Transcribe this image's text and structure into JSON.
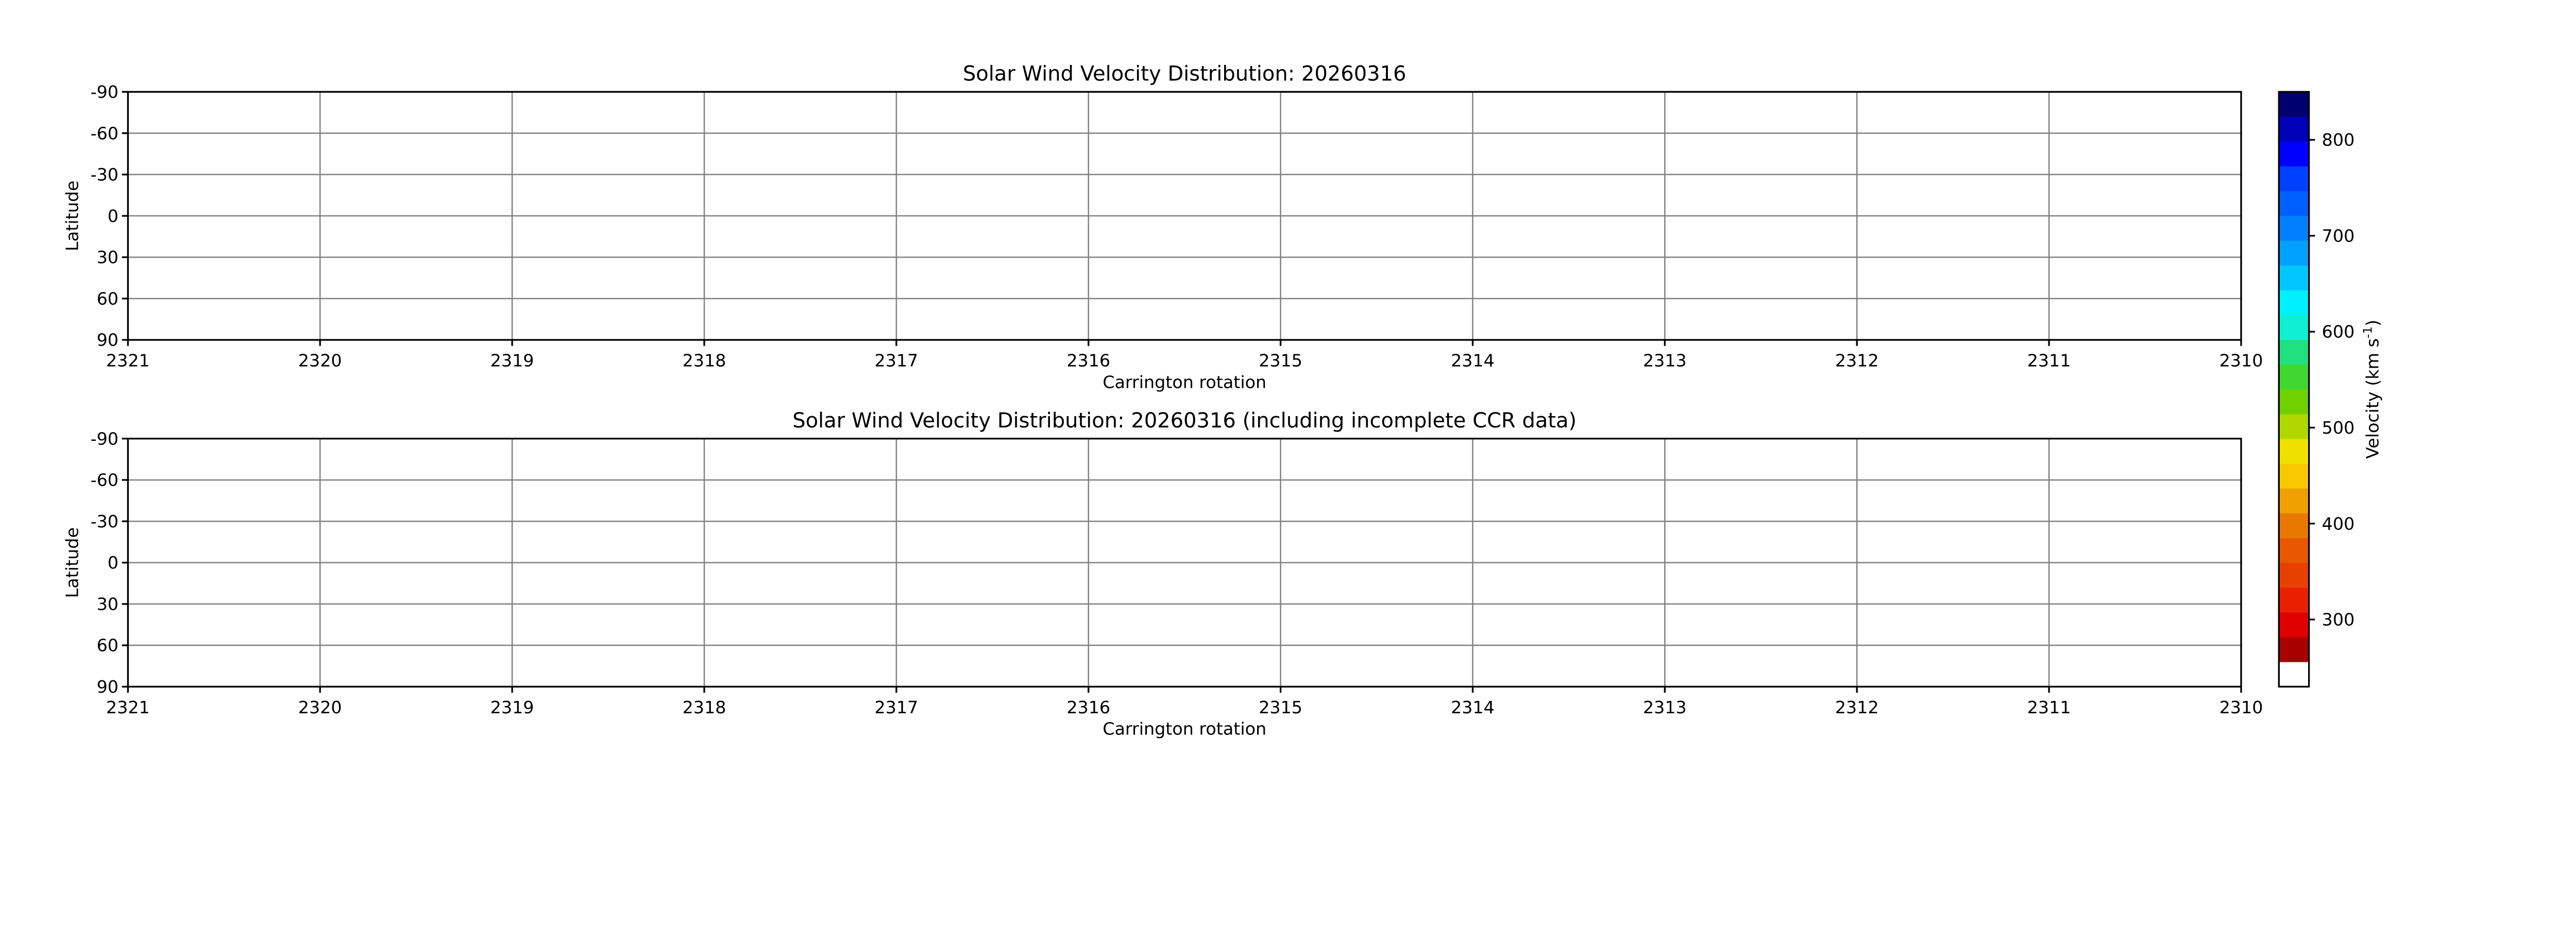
{
  "chart_data": [
    {
      "type": "heatmap",
      "title": "Solar Wind Velocity Distribution: 20260316",
      "xlabel": "Carrington rotation",
      "ylabel": "Latitude",
      "xlim": [
        2321,
        2310
      ],
      "ylim": [
        -90,
        90
      ],
      "x_ticks": [
        "2321",
        "2320",
        "2319",
        "2318",
        "2317",
        "2316",
        "2315",
        "2314",
        "2313",
        "2312",
        "2311",
        "2310"
      ],
      "y_ticks": [
        "-90",
        "-60",
        "-30",
        "0",
        "30",
        "60",
        "90"
      ],
      "grid": true,
      "values": []
    },
    {
      "type": "heatmap",
      "title": "Solar Wind Velocity Distribution: 20260316 (including incomplete CCR data)",
      "xlabel": "Carrington rotation",
      "ylabel": "Latitude",
      "xlim": [
        2321,
        2310
      ],
      "ylim": [
        -90,
        90
      ],
      "x_ticks": [
        "2321",
        "2320",
        "2319",
        "2318",
        "2317",
        "2316",
        "2315",
        "2314",
        "2313",
        "2312",
        "2311",
        "2310"
      ],
      "y_ticks": [
        "-90",
        "-60",
        "-30",
        "0",
        "30",
        "60",
        "90"
      ],
      "grid": true,
      "values": []
    }
  ],
  "colorbar": {
    "label": "Velocity (km s",
    "label_exponent": "-1",
    "label_close": ")",
    "range": [
      230,
      850
    ],
    "ticks": [
      "300",
      "400",
      "500",
      "600",
      "700",
      "800"
    ],
    "colors_bottom_to_top": [
      "#ffffff",
      "#a80000",
      "#e00000",
      "#e82000",
      "#e84000",
      "#e85800",
      "#e87800",
      "#f0a000",
      "#f8c800",
      "#f0e000",
      "#b0d800",
      "#70d000",
      "#40d830",
      "#20e080",
      "#10f0d0",
      "#00f0ff",
      "#00c8ff",
      "#00a0ff",
      "#0080ff",
      "#0060ff",
      "#0040ff",
      "#0000ff",
      "#0000b8",
      "#000070"
    ]
  },
  "colors": {
    "grid": "#808080",
    "axis": "#000000"
  }
}
